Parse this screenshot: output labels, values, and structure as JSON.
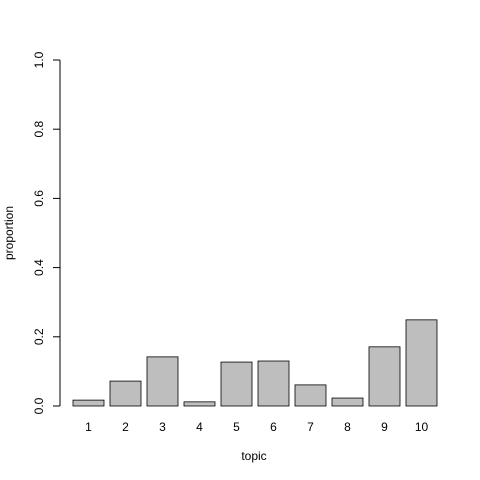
{
  "chart_data": {
    "type": "bar",
    "x_label": "topic",
    "y_label": "proportion",
    "categories": [
      "1",
      "2",
      "3",
      "4",
      "5",
      "6",
      "7",
      "8",
      "9",
      "10"
    ],
    "values": [
      0.017,
      0.072,
      0.142,
      0.012,
      0.127,
      0.13,
      0.061,
      0.023,
      0.171,
      0.249
    ],
    "color": "#bebebe",
    "ylim": [
      0,
      1
    ],
    "yticks": [
      {
        "value": 0,
        "label": "0.0"
      },
      {
        "value": 0.2,
        "label": "0.2"
      },
      {
        "value": 0.4,
        "label": "0.4"
      },
      {
        "value": 0.6,
        "label": "0.6"
      },
      {
        "value": 0.8,
        "label": "0.8"
      },
      {
        "value": 1,
        "label": "1.0"
      }
    ]
  }
}
